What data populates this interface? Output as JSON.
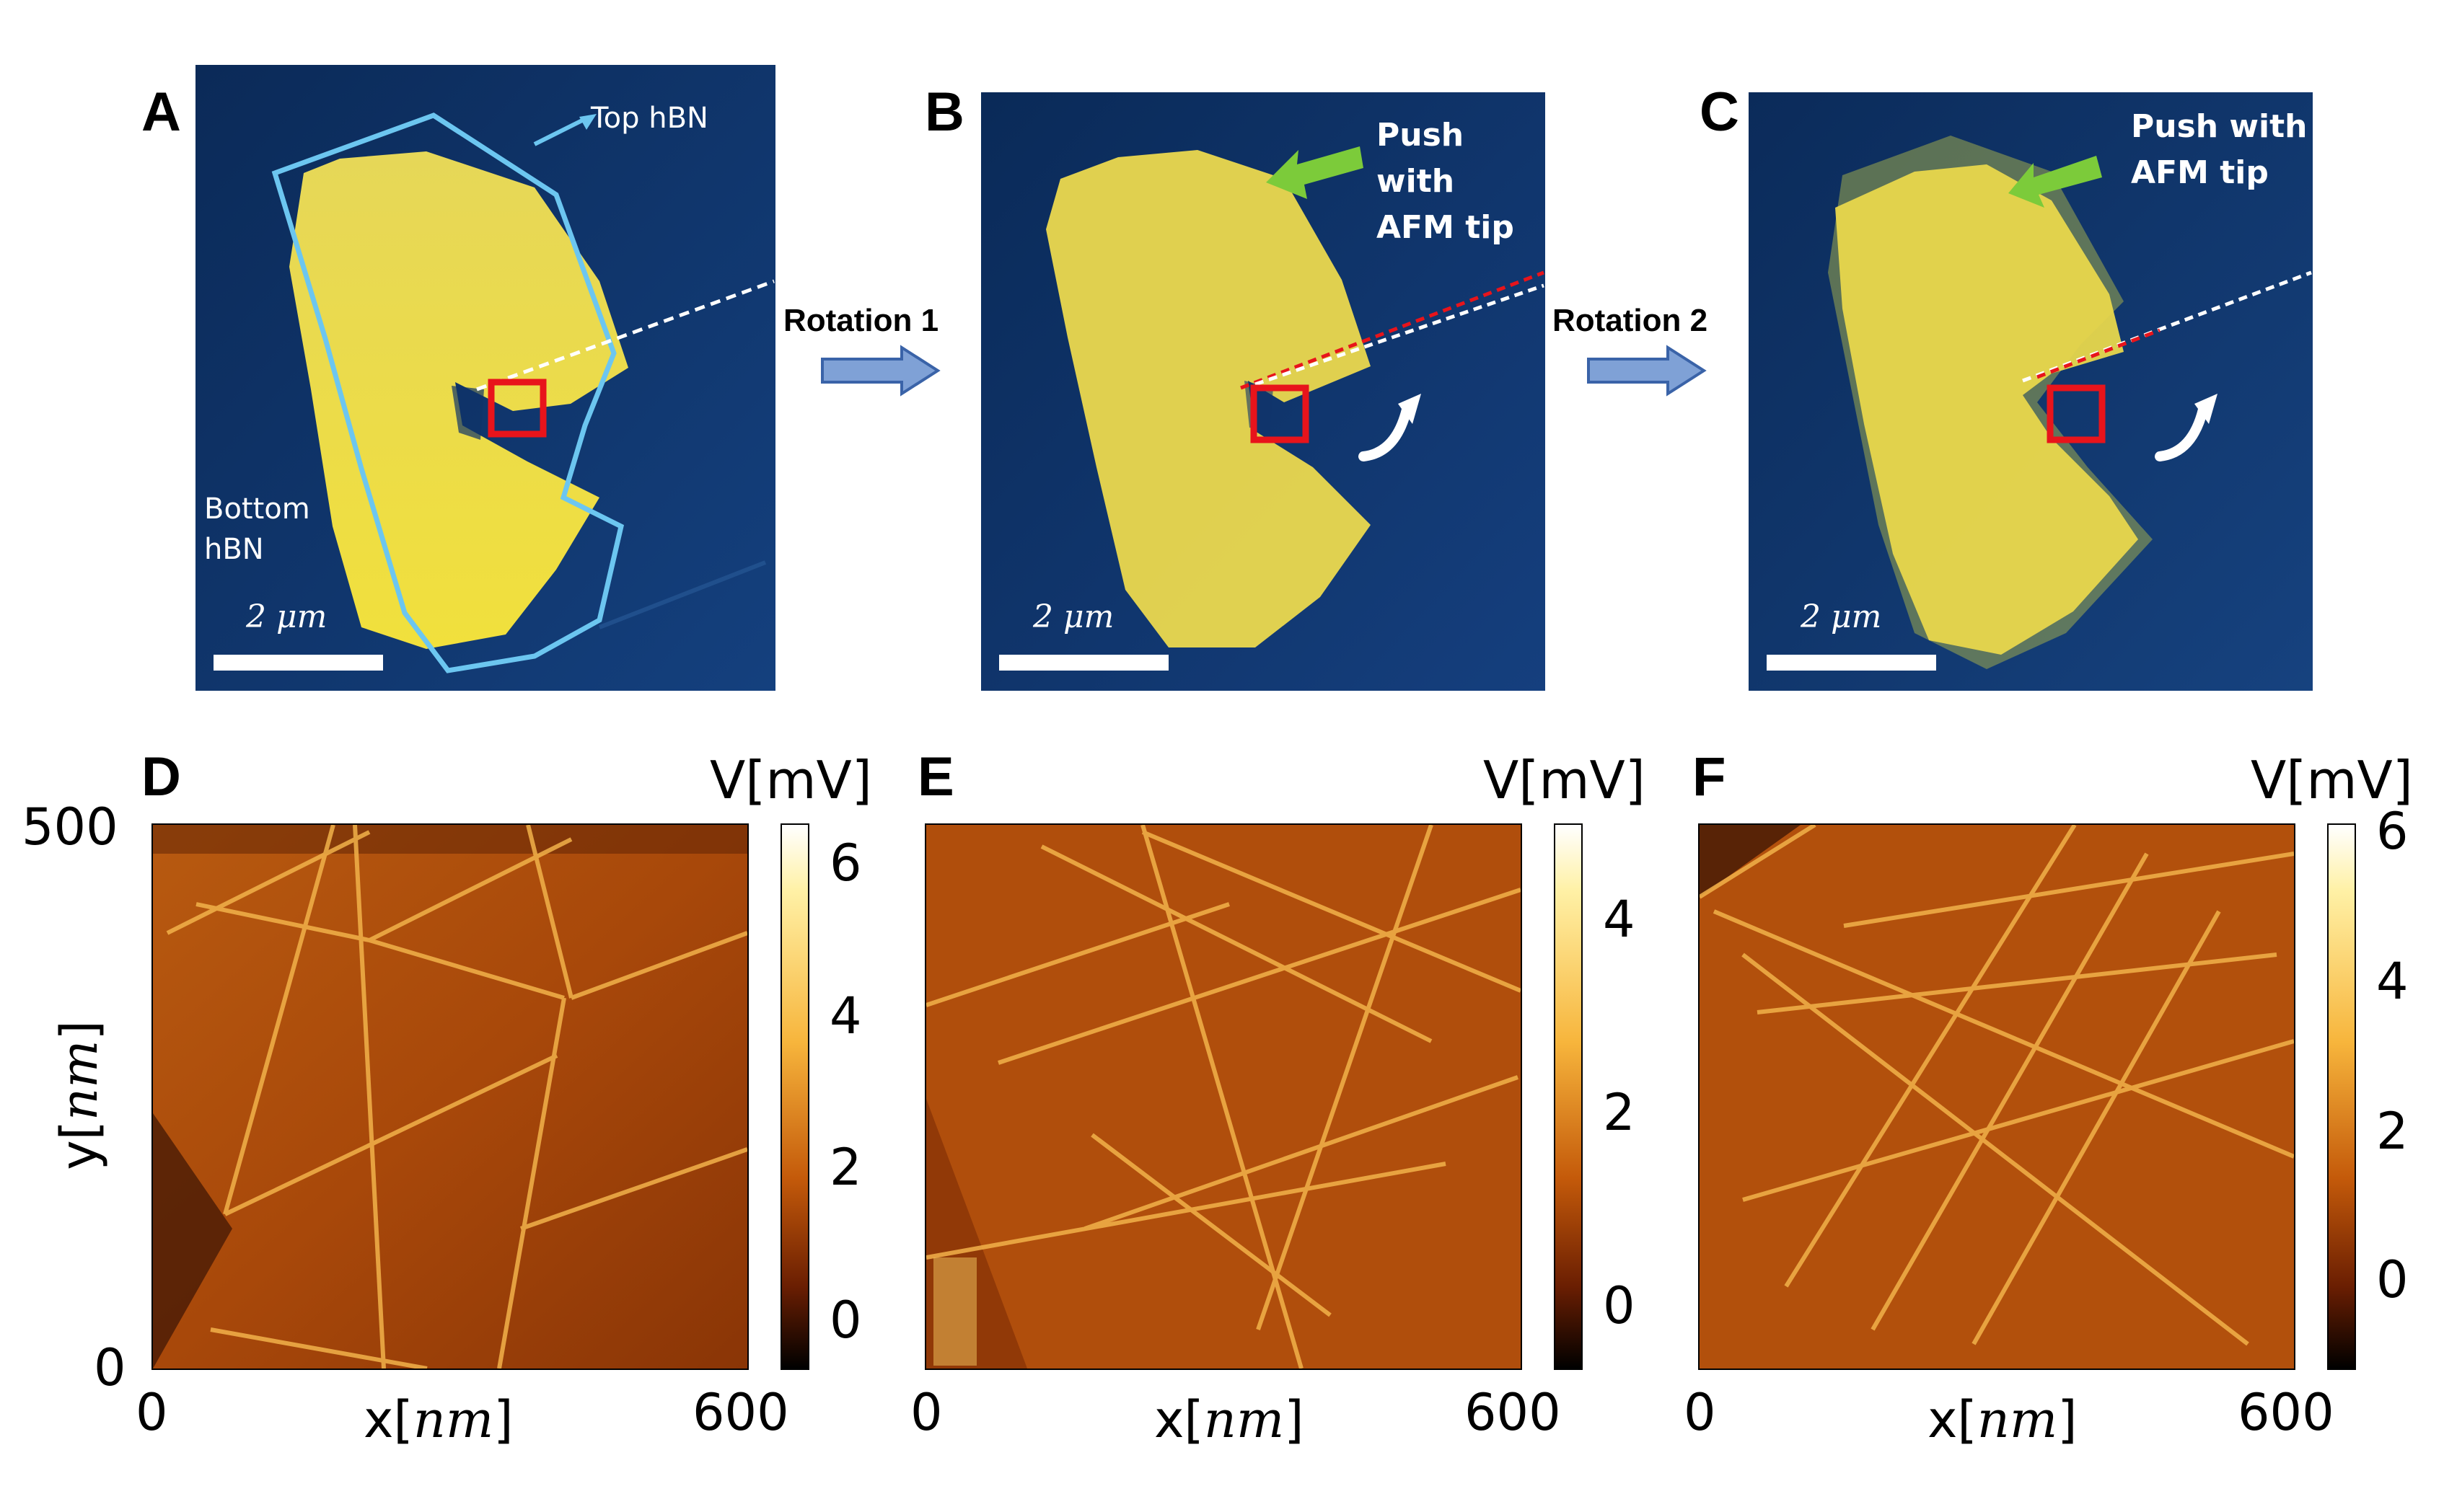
{
  "panels_top": [
    {
      "label": "A",
      "scale_text": "2 μm",
      "annotation_top": "Top hBN",
      "annotation_bottom": "Bottom\nhBN"
    },
    {
      "label": "B",
      "scale_text": "2 μm",
      "push_text": "Push with\nAFM tip"
    },
    {
      "label": "C",
      "scale_text": "2 μm",
      "push_text": "Push with\nAFM tip"
    }
  ],
  "arrows": [
    {
      "label": "Rotation 1"
    },
    {
      "label": "Rotation 2"
    }
  ],
  "panels_bottom": [
    {
      "label": "D",
      "unit": "V[mV]",
      "cbar_ticks": [
        "6",
        "4",
        "2",
        "0"
      ],
      "cbar_range": [
        -0.6,
        6.5
      ]
    },
    {
      "label": "E",
      "unit": "V[mV]",
      "cbar_ticks": [
        "4",
        "2",
        "0"
      ],
      "cbar_range": [
        -0.6,
        4.9
      ]
    },
    {
      "label": "F",
      "unit": "V[mV]",
      "cbar_ticks": [
        "6",
        "4",
        "2",
        "0"
      ],
      "cbar_range": [
        -1.3,
        6.2
      ]
    }
  ],
  "axes": {
    "x_label_pre": "x[",
    "x_label_var": "nm",
    "x_label_post": "]",
    "y_label_pre": "y[",
    "y_label_var": "nm",
    "y_label_post": "]",
    "x_ticks": [
      "0",
      "600"
    ],
    "y_ticks": [
      "500",
      "0"
    ]
  },
  "colors": {
    "afm_bg": "#0c2d5e",
    "flake": "#e9d94a",
    "outline": "#6cc6f0",
    "box": "#e8141b",
    "arrow_fill": "#7fa1d6",
    "green": "#7ccb3a"
  }
}
